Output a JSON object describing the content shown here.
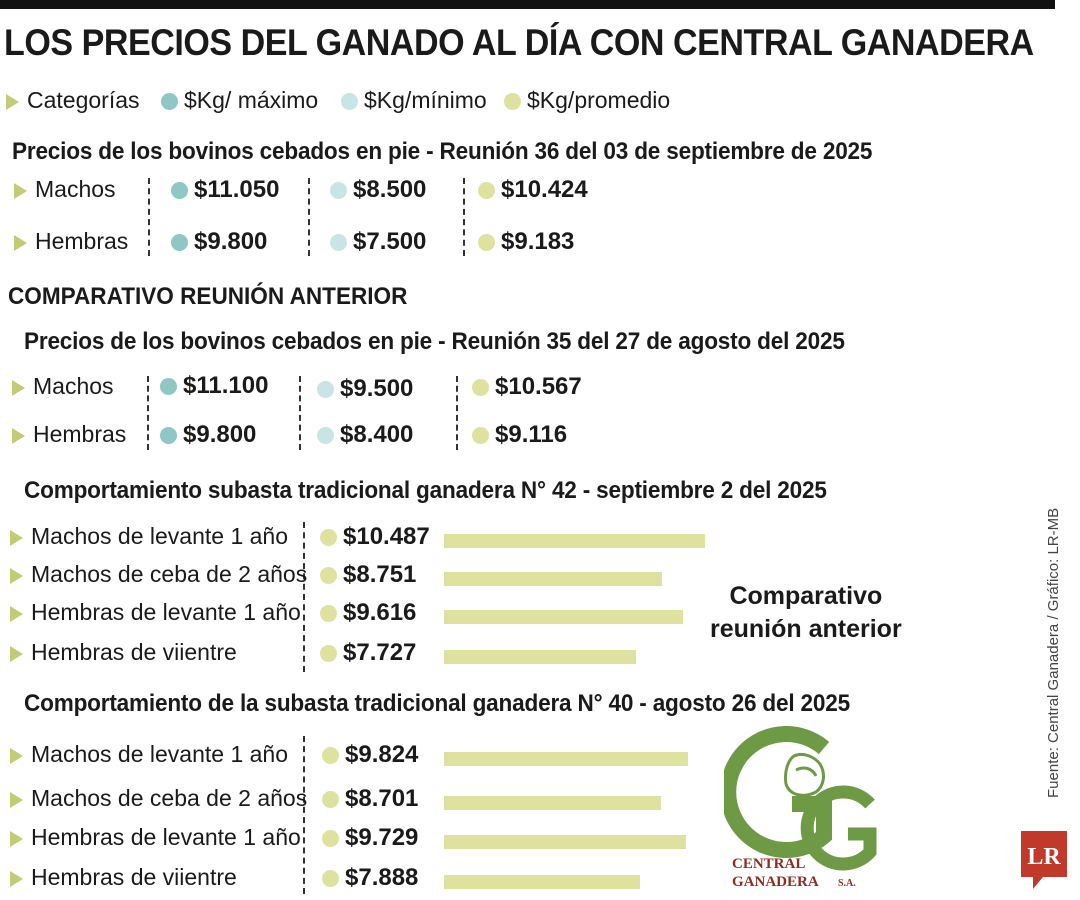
{
  "title": "LOS PRECIOS DEL GANADO AL DÍA CON CENTRAL GANADERA",
  "legend": {
    "categories": "Categorías",
    "max": "$Kg/ máximo",
    "min": "$Kg/mínimo",
    "avg": "$Kg/promedio"
  },
  "colors": {
    "max": "#8ec7c3",
    "min": "#c9e4e4",
    "avg": "#dfe29f",
    "marker": "#c3cc74",
    "logo_green": "#6e9a45",
    "logo_red": "#8b2d1f",
    "lr_red": "#c0392b"
  },
  "section1": {
    "title": "Precios de los bovinos cebados en pie - Reunión 36 del 03 de septiembre de 2025",
    "rows": [
      {
        "label": "Machos",
        "max": "$11.050",
        "min": "$8.500",
        "avg": "$10.424"
      },
      {
        "label": "Hembras",
        "max": "$9.800",
        "min": "$7.500",
        "avg": "$9.183"
      }
    ]
  },
  "comparative_heading": "COMPARATIVO REUNIÓN ANTERIOR",
  "section2": {
    "title": "Precios de los bovinos cebados en pie - Reunión 35 del 27 de agosto del 2025",
    "rows": [
      {
        "label": "Machos",
        "max": "$11.100",
        "min": "$9.500",
        "avg": "$10.567"
      },
      {
        "label": "Hembras",
        "max": "$9.800",
        "min": "$8.400",
        "avg": "$9.116"
      }
    ]
  },
  "comparison_note": [
    "Comparativo",
    "reunión anterior"
  ],
  "chart_data": [
    {
      "type": "bar",
      "orientation": "horizontal",
      "title": "Comportamiento subasta tradicional ganadera N° 42 - septiembre 2 del 2025",
      "categories": [
        "Machos de levante 1 año",
        "Machos de ceba de 2 años",
        "Hembras de levante 1 año",
        "Hembras de viientre"
      ],
      "values": [
        10487,
        8751,
        9616,
        7727
      ],
      "value_labels": [
        "$10.487",
        "$8.751",
        "$9.616",
        "$7.727"
      ],
      "xlim": [
        0,
        10487
      ]
    },
    {
      "type": "bar",
      "orientation": "horizontal",
      "title": "Comportamiento de la subasta tradicional ganadera N° 40 - agosto 26 del 2025",
      "categories": [
        "Machos de levante 1 año",
        "Machos de ceba de 2 años",
        "Hembras de levante 1 año",
        "Hembras de viientre"
      ],
      "values": [
        9824,
        8701,
        9729,
        7888
      ],
      "value_labels": [
        "$9.824",
        "$8.701",
        "$9.729",
        "$7.888"
      ],
      "xlim": [
        0,
        10487
      ]
    }
  ],
  "source": "Fuente:  Central Ganadera / Gráfico: LR-MB",
  "logo": {
    "line1": "CENTRAL",
    "line2": "GANADERA",
    "suffix": "S.A."
  },
  "lr_logo": "LR"
}
